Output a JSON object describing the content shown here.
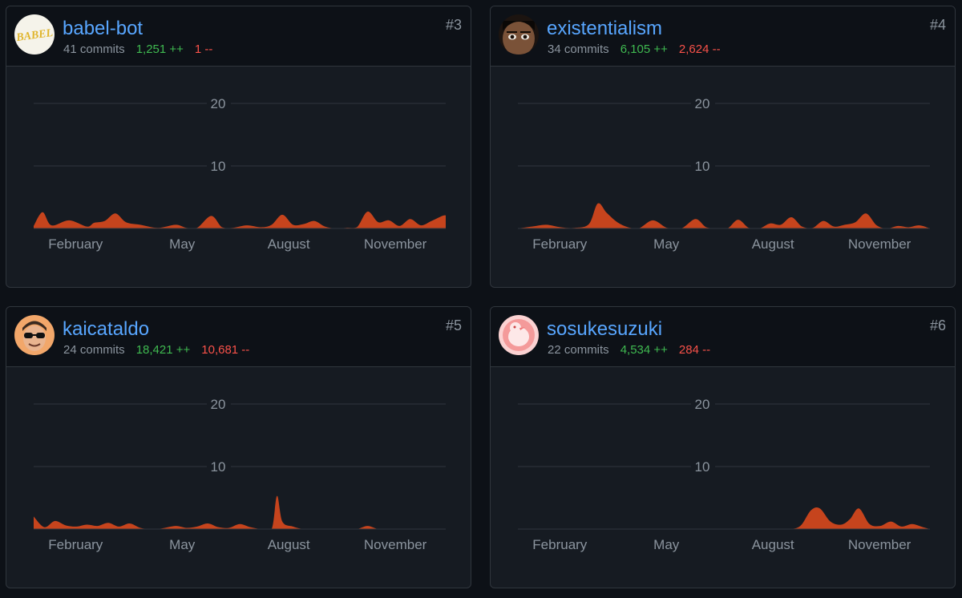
{
  "contributors": [
    {
      "rank": "#3",
      "username": "babel-bot",
      "commits": "41 commits",
      "additions": "1,251 ++",
      "deletions": "1 --",
      "avatar_text": "BABEL",
      "avatar_icon": "babel-logo-icon"
    },
    {
      "rank": "#4",
      "username": "existentialism",
      "commits": "34 commits",
      "additions": "6,105 ++",
      "deletions": "2,624 --",
      "avatar_icon": "face-photo-icon"
    },
    {
      "rank": "#5",
      "username": "kaicataldo",
      "commits": "24 commits",
      "additions": "18,421 ++",
      "deletions": "10,681 --",
      "avatar_icon": "face-sunglasses-icon"
    },
    {
      "rank": "#6",
      "username": "sosukesuzuki",
      "commits": "22 commits",
      "additions": "4,534 ++",
      "deletions": "284 --",
      "avatar_icon": "cartoon-bird-icon"
    }
  ],
  "colors": {
    "accent": "#58a6ff",
    "additions": "#3fb950",
    "deletions": "#f85149",
    "area_fill": "#c6441d",
    "muted": "#8b949e"
  },
  "chart_data": [
    {
      "type": "area",
      "title": "babel-bot",
      "y_ticks": [
        "10",
        "20"
      ],
      "ylim": [
        0,
        20
      ],
      "x_ticks": [
        "February",
        "May",
        "August",
        "November"
      ],
      "x_tick_positions": [
        1,
        4,
        7,
        10
      ],
      "x": [
        0,
        0.25,
        0.5,
        1.0,
        1.5,
        1.7,
        2.0,
        2.3,
        2.6,
        3.0,
        3.5,
        4.0,
        4.3,
        4.6,
        5.0,
        5.3,
        5.6,
        6.0,
        6.4,
        6.7,
        7.0,
        7.3,
        7.6,
        7.9,
        8.2,
        8.5,
        8.8,
        9.1,
        9.4,
        9.7,
        10.0,
        10.3,
        10.6,
        10.9,
        11.2,
        11.5,
        11.6
      ],
      "values": [
        0.4,
        2.6,
        0.5,
        1.3,
        0.3,
        0.9,
        1.2,
        2.4,
        1.0,
        0.6,
        0.1,
        0.6,
        0.1,
        0.1,
        2.0,
        0.2,
        0.1,
        0.5,
        0.2,
        0.6,
        2.2,
        0.6,
        0.7,
        1.2,
        0.3,
        0.0,
        0.1,
        0.2,
        2.7,
        1.0,
        1.3,
        0.4,
        1.5,
        0.5,
        1.2,
        2.0,
        2.1
      ]
    },
    {
      "type": "area",
      "title": "existentialism",
      "y_ticks": [
        "10",
        "20"
      ],
      "ylim": [
        0,
        20
      ],
      "x_ticks": [
        "February",
        "May",
        "August",
        "November"
      ],
      "x_tick_positions": [
        1,
        4,
        7,
        10
      ],
      "x": [
        0,
        0.4,
        0.8,
        1.2,
        1.6,
        2.0,
        2.25,
        2.5,
        2.8,
        3.1,
        3.4,
        3.8,
        4.2,
        4.6,
        5.0,
        5.3,
        5.6,
        5.9,
        6.2,
        6.5,
        6.8,
        7.1,
        7.4,
        7.7,
        8.0,
        8.3,
        8.6,
        8.9,
        9.2,
        9.5,
        9.8,
        10.1,
        10.4,
        10.7,
        11.0,
        11.3,
        11.6
      ],
      "values": [
        0.0,
        0.3,
        0.6,
        0.2,
        0.1,
        0.7,
        4.0,
        2.5,
        1.0,
        0.2,
        0.0,
        1.3,
        0.1,
        0.0,
        1.5,
        0.2,
        0.0,
        0.0,
        1.4,
        0.1,
        0.0,
        0.8,
        0.6,
        1.8,
        0.3,
        0.1,
        1.2,
        0.3,
        0.6,
        1.0,
        2.4,
        0.5,
        0.0,
        0.4,
        0.2,
        0.5,
        0.0
      ]
    },
    {
      "type": "area",
      "title": "kaicataldo",
      "y_ticks": [
        "10",
        "20"
      ],
      "ylim": [
        0,
        20
      ],
      "x_ticks": [
        "February",
        "May",
        "August",
        "November"
      ],
      "x_tick_positions": [
        1,
        4,
        7,
        10
      ],
      "x": [
        0,
        0.3,
        0.6,
        0.9,
        1.2,
        1.5,
        1.8,
        2.1,
        2.4,
        2.7,
        3.0,
        3.3,
        3.6,
        4.0,
        4.3,
        4.6,
        4.9,
        5.2,
        5.5,
        5.8,
        6.1,
        6.4,
        6.7,
        6.85,
        7.0,
        7.3,
        7.6,
        7.9,
        8.2,
        8.5,
        8.8,
        9.1,
        9.4,
        9.7,
        10.0,
        10.3,
        10.6,
        10.9,
        11.2,
        11.6
      ],
      "values": [
        2.0,
        0.3,
        1.3,
        0.6,
        0.4,
        0.7,
        0.5,
        1.0,
        0.4,
        0.9,
        0.2,
        0.0,
        0.1,
        0.5,
        0.2,
        0.4,
        0.9,
        0.3,
        0.2,
        0.8,
        0.3,
        0.0,
        0.0,
        5.3,
        1.2,
        0.4,
        0.0,
        0.0,
        0.0,
        0.0,
        0.0,
        0.0,
        0.5,
        0.0,
        0.0,
        0.0,
        0.0,
        0.0,
        0.0,
        0.0
      ]
    },
    {
      "type": "area",
      "title": "sosukesuzuki",
      "y_ticks": [
        "10",
        "20"
      ],
      "ylim": [
        0,
        20
      ],
      "x_ticks": [
        "February",
        "May",
        "August",
        "November"
      ],
      "x_tick_positions": [
        1,
        4,
        7,
        10
      ],
      "x": [
        0,
        1,
        2,
        3,
        4,
        5,
        6,
        7,
        7.6,
        7.95,
        8.25,
        8.5,
        8.8,
        9.1,
        9.35,
        9.6,
        9.9,
        10.2,
        10.5,
        10.8,
        11.1,
        11.4,
        11.6
      ],
      "values": [
        0,
        0,
        0,
        0,
        0,
        0,
        0,
        0,
        0.0,
        0.5,
        3.0,
        3.3,
        1.2,
        0.7,
        1.6,
        3.3,
        0.8,
        0.5,
        1.2,
        0.4,
        0.8,
        0.3,
        0.0
      ]
    }
  ]
}
